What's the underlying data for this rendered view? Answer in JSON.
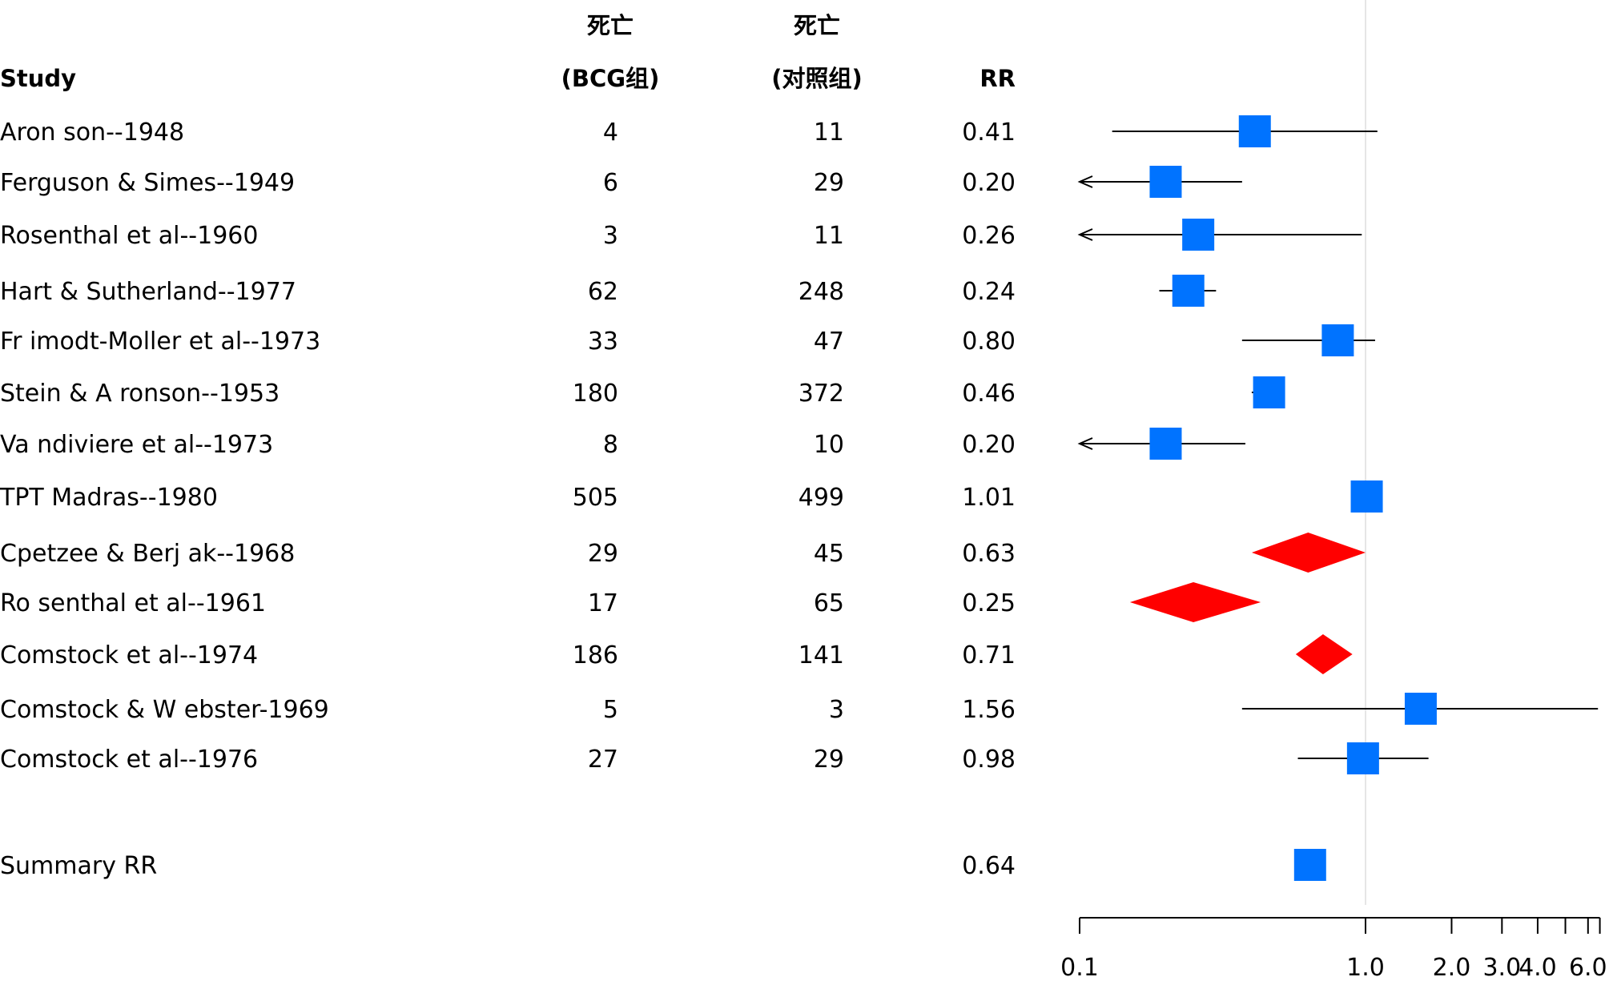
{
  "chart_data": {
    "type": "forest",
    "headers": {
      "study": "Study",
      "bcg_top": "死亡",
      "bcg_bottom": "(BCG组)",
      "ctrl_top": "死亡",
      "ctrl_bottom": "(对照组)",
      "rr": "RR"
    },
    "x_scale": "log",
    "xlim": [
      0.1,
      6.6
    ],
    "reference_line": 1.0,
    "x_ticks": [
      {
        "value": 0.1,
        "label": "0.1"
      },
      {
        "value": 1.0,
        "label": "1.0"
      },
      {
        "value": 2.0,
        "label": "2.0"
      },
      {
        "value": 3.0,
        "label": "3.0"
      },
      {
        "value": 4.0,
        "label": "4.0"
      },
      {
        "value": 5.0,
        "label": ""
      },
      {
        "value": 6.0,
        "label": "6.0"
      },
      {
        "value": 6.6,
        "label": ""
      }
    ],
    "colors": {
      "box": "#0073ff",
      "diamond": "#ff0000",
      "ci_line": "#000000",
      "axis": "#000000",
      "reference": "#e6e6e6"
    },
    "studies": [
      {
        "label": "Aron son--1948",
        "bcg": "4",
        "control": "11",
        "rr_text": "0.41",
        "rr": 0.41,
        "lo": 0.13,
        "hi": 1.1,
        "marker": "box"
      },
      {
        "label": "Ferguson & Simes--1949",
        "bcg": "6",
        "control": "29",
        "rr_text": "0.20",
        "rr": 0.2,
        "lo": 0.1,
        "hi": 0.37,
        "marker": "box",
        "arrow_left": true
      },
      {
        "label": "Rosenthal et al--1960",
        "bcg": "3",
        "control": "11",
        "rr_text": "0.26",
        "rr": 0.26,
        "lo": 0.1,
        "hi": 0.97,
        "marker": "box",
        "arrow_left": true
      },
      {
        "label": "Hart & Sutherland--1977",
        "bcg": "62",
        "control": "248",
        "rr_text": "0.24",
        "rr": 0.24,
        "lo": 0.19,
        "hi": 0.3,
        "marker": "box"
      },
      {
        "label": "Fr imodt-Moller et al--1973",
        "bcg": "33",
        "control": "47",
        "rr_text": "0.80",
        "rr": 0.8,
        "lo": 0.37,
        "hi": 1.08,
        "marker": "box"
      },
      {
        "label": "Stein & A ronson--1953",
        "bcg": "180",
        "control": "372",
        "rr_text": "0.46",
        "rr": 0.46,
        "lo": 0.4,
        "hi": 0.52,
        "marker": "box"
      },
      {
        "label": "Va ndiviere et al--1973",
        "bcg": "8",
        "control": "10",
        "rr_text": "0.20",
        "rr": 0.2,
        "lo": 0.1,
        "hi": 0.38,
        "marker": "box",
        "arrow_left": true
      },
      {
        "label": "TPT  Madras--1980",
        "bcg": "505",
        "control": "499",
        "rr_text": "1.01",
        "rr": 1.01,
        "lo": 0.89,
        "hi": 1.14,
        "marker": "box"
      },
      {
        "label": "Cpetzee & Berj ak--1968",
        "bcg": "29",
        "control": "45",
        "rr_text": "0.63",
        "rr": 0.63,
        "lo": 0.4,
        "hi": 1.0,
        "marker": "diamond"
      },
      {
        "label": "Ro senthal et al--1961",
        "bcg": "17",
        "control": "65",
        "rr_text": "0.25",
        "rr": 0.25,
        "lo": 0.15,
        "hi": 0.43,
        "marker": "diamond"
      },
      {
        "label": "Comstock et al--1974",
        "bcg": "186",
        "control": "141",
        "rr_text": "0.71",
        "rr": 0.71,
        "lo": 0.57,
        "hi": 0.9,
        "marker": "diamond"
      },
      {
        "label": "Comstock & W ebster-1969",
        "bcg": "5",
        "control": "3",
        "rr_text": "1.56",
        "rr": 1.56,
        "lo": 0.37,
        "hi": 6.5,
        "marker": "box"
      },
      {
        "label": "Comstock et al--1976",
        "bcg": "27",
        "control": "29",
        "rr_text": "0.98",
        "rr": 0.98,
        "lo": 0.58,
        "hi": 1.66,
        "marker": "box"
      }
    ],
    "summary": {
      "label": "Summary RR",
      "rr_text": "0.64",
      "rr": 0.64,
      "lo": 0.58,
      "hi": 0.71,
      "marker": "box"
    }
  }
}
